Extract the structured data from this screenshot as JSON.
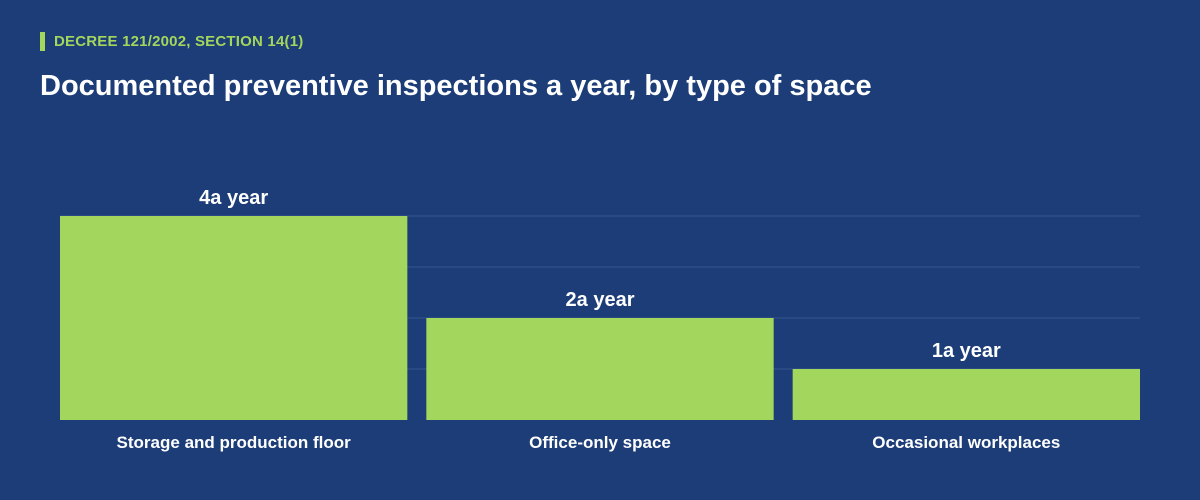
{
  "header": {
    "eyebrow": "DECREE 121/2002, SECTION 14(1)",
    "title": "Documented preventive inspections a year, by type of space"
  },
  "colors": {
    "background": "#1c3d77",
    "bar": "#a3d65c",
    "accent": "#a3d65c",
    "grid": "#34558d",
    "text": "#ffffff"
  },
  "chart_data": {
    "type": "bar",
    "title": "Documented preventive inspections a year, by type of space",
    "categories": [
      "Storage and production floor",
      "Office-only space",
      "Occasional workplaces"
    ],
    "values": [
      4,
      2,
      1
    ],
    "value_labels": [
      "4a year",
      "2a year",
      "1a year"
    ],
    "xlabel": "",
    "ylabel": "",
    "ylim": [
      0,
      4
    ],
    "grid": true,
    "legend": "none"
  }
}
